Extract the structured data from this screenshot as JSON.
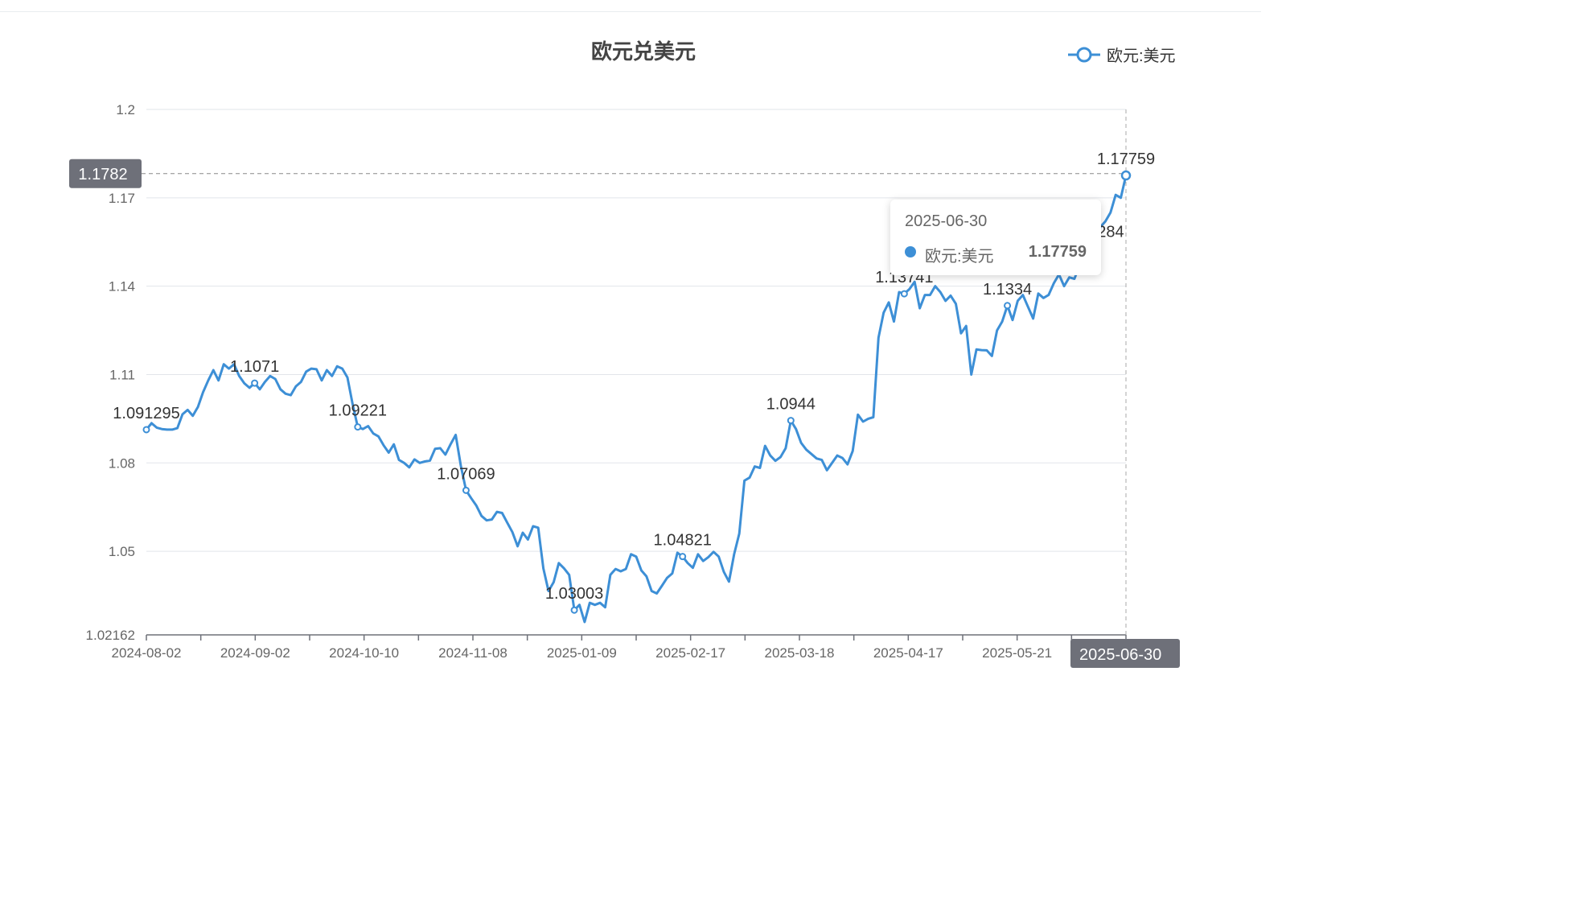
{
  "chart_data": {
    "type": "line",
    "title": "欧元兑美元",
    "legend": {
      "position": "top-right"
    },
    "series": [
      {
        "name": "欧元:美元",
        "color": "#3d8fd6",
        "values": [
          1.091295,
          1.0935,
          1.092,
          1.0915,
          1.0913,
          1.0913,
          1.0918,
          1.0965,
          1.098,
          1.096,
          1.099,
          1.104,
          1.108,
          1.1115,
          1.108,
          1.1135,
          1.112,
          1.1135,
          1.1095,
          1.107,
          1.1055,
          1.1071,
          1.105,
          1.1075,
          1.1095,
          1.1085,
          1.105,
          1.1035,
          1.103,
          1.106,
          1.1075,
          1.111,
          1.112,
          1.1118,
          1.108,
          1.1115,
          1.1095,
          1.1128,
          1.112,
          1.109,
          1.1,
          1.09221,
          1.0915,
          1.0925,
          1.09,
          1.089,
          1.086,
          1.0835,
          1.0863,
          1.081,
          1.08,
          1.0785,
          1.0812,
          1.08,
          1.0805,
          1.0808,
          1.0848,
          1.085,
          1.0828,
          1.0863,
          1.0895,
          1.079,
          1.07069,
          1.068,
          1.0655,
          1.062,
          1.0605,
          1.0608,
          1.0634,
          1.063,
          1.0597,
          1.0565,
          1.0517,
          1.0563,
          1.054,
          1.0585,
          1.058,
          1.0442,
          1.0365,
          1.0395,
          1.046,
          1.0442,
          1.042,
          1.03003,
          1.0318,
          1.026,
          1.0325,
          1.0318,
          1.0325,
          1.031,
          1.042,
          1.044,
          1.0432,
          1.044,
          1.049,
          1.0482,
          1.0435,
          1.0415,
          1.0365,
          1.0357,
          1.0383,
          1.041,
          1.0425,
          1.0495,
          1.04821,
          1.046,
          1.0444,
          1.049,
          1.0467,
          1.048,
          1.0498,
          1.0482,
          1.043,
          1.0397,
          1.049,
          1.056,
          1.074,
          1.075,
          1.0788,
          1.0783,
          1.0858,
          1.0825,
          1.0807,
          1.082,
          1.085,
          1.0944,
          1.0915,
          1.0868,
          1.0845,
          1.083,
          1.0815,
          1.081,
          1.0775,
          1.08,
          1.0825,
          1.0817,
          1.0795,
          1.084,
          1.0964,
          1.094,
          1.095,
          1.0955,
          1.1225,
          1.131,
          1.1345,
          1.128,
          1.138,
          1.13741,
          1.139,
          1.1415,
          1.1325,
          1.137,
          1.137,
          1.14,
          1.138,
          1.135,
          1.1368,
          1.134,
          1.124,
          1.1265,
          1.11,
          1.1185,
          1.1183,
          1.1182,
          1.1163,
          1.125,
          1.128,
          1.1334,
          1.1285,
          1.135,
          1.137,
          1.133,
          1.129,
          1.1375,
          1.136,
          1.137,
          1.141,
          1.144,
          1.14,
          1.143,
          1.1425,
          1.147,
          1.151,
          1.1535,
          1.15284,
          1.16,
          1.162,
          1.165,
          1.171,
          1.17,
          1.17759
        ]
      }
    ],
    "x_labels": [
      "2024-08-02",
      "2024-09-02",
      "2024-10-10",
      "2024-11-08",
      "2025-01-09",
      "2025-02-17",
      "2025-03-18",
      "2025-04-17",
      "2025-05-21",
      "2025-06-30"
    ],
    "y_ticks": [
      "1.2",
      "1.17",
      "1.14",
      "1.11",
      "1.08",
      "1.05",
      "1.02162"
    ],
    "ylim": [
      1.02162,
      1.2
    ],
    "grid": true,
    "data_labels": [
      {
        "text": "1.091295",
        "value": 1.091295
      },
      {
        "text": "1.1071",
        "value": 1.1071
      },
      {
        "text": "1.09221",
        "value": 1.09221
      },
      {
        "text": "1.07069",
        "value": 1.07069
      },
      {
        "text": "1.03003",
        "value": 1.03003
      },
      {
        "text": "1.04821",
        "value": 1.04821
      },
      {
        "text": "1.0944",
        "value": 1.0944
      },
      {
        "text": "1.13741",
        "value": 1.13741
      },
      {
        "text": "1.1334",
        "value": 1.1334
      },
      {
        "text": "1.15284",
        "value": 1.15284
      },
      {
        "text": "1.17759",
        "value": 1.17759
      }
    ],
    "y_pointer": {
      "value": 1.1782,
      "text": "1.1782"
    },
    "x_pointer": {
      "text": "2025-06-30"
    },
    "tooltip": {
      "date": "2025-06-30",
      "series_name": "欧元:美元",
      "value_text": "1.17759"
    }
  }
}
